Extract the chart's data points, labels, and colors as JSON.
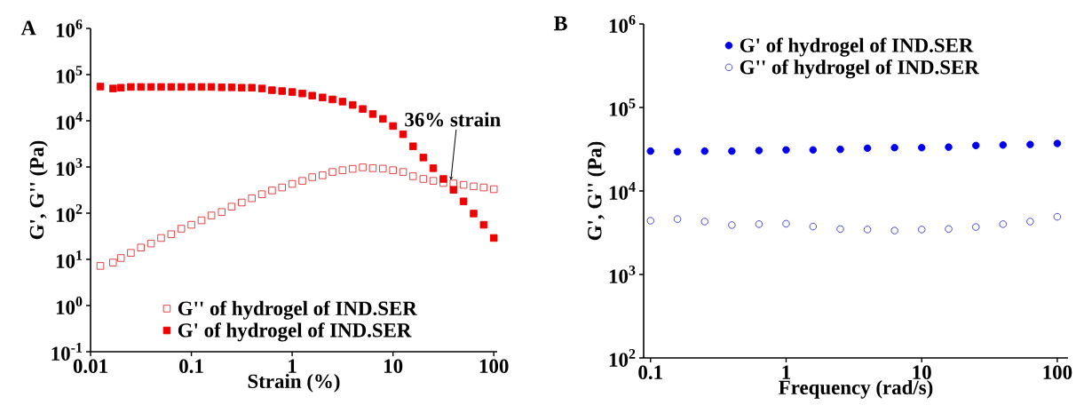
{
  "chart_data": [
    {
      "type": "scatter",
      "title": "A",
      "xlabel": "Strain (%)",
      "ylabel": "G', G'' (Pa)",
      "log": "xy",
      "legend": "bottom",
      "grid": false,
      "xlim": [
        0.01,
        108
      ],
      "ylim": [
        0.1,
        1000000
      ],
      "xticks": [
        0.01,
        0.1,
        1,
        10,
        100
      ],
      "yticks": [
        {
          "value": 0.1,
          "label": "10$^{-1}$"
        },
        {
          "value": 1,
          "label": "10$^{0}$"
        },
        {
          "value": 10,
          "label": "10$^{1}$"
        },
        {
          "value": 100,
          "label": "10$^{2}$"
        },
        {
          "value": 1000,
          "label": "10$^{3}$"
        },
        {
          "value": 10000,
          "label": "10$^{4}$"
        },
        {
          "value": 100000,
          "label": "10$^{5}$"
        },
        {
          "value": 1000000,
          "label": "10$^{6}$"
        }
      ],
      "x": [
        0.0125,
        0.0167,
        0.02,
        0.0251,
        0.0316,
        0.0398,
        0.0501,
        0.0631,
        0.0794,
        0.1,
        0.126,
        0.158,
        0.2,
        0.251,
        0.316,
        0.398,
        0.501,
        0.631,
        0.794,
        1,
        1.26,
        1.58,
        2,
        2.51,
        3.16,
        3.98,
        5.01,
        6.31,
        7.94,
        10,
        12.6,
        15.8,
        20,
        25.1,
        31.6,
        39.8,
        50.1,
        63.1,
        79.4,
        100
      ],
      "series": [
        {
          "name": "G'' of hydrogel of IND.SER",
          "color": "#e03030",
          "marker": "square",
          "values": [
            7.2,
            8.5,
            10.7,
            13.8,
            18,
            22,
            29,
            35,
            46,
            56,
            70,
            89,
            106,
            138,
            170,
            210,
            257,
            310,
            360,
            430,
            500,
            600,
            660,
            780,
            850,
            910,
            980,
            940,
            920,
            850,
            780,
            630,
            550,
            500,
            450,
            440,
            410,
            380,
            360,
            330
          ]
        },
        {
          "name": "G' of hydrogel of IND.SER",
          "color": "#ee0000",
          "marker": "square",
          "values": [
            55000,
            50000,
            52000,
            54000,
            54000,
            54000,
            54000,
            54000,
            54000,
            54000,
            54000,
            54000,
            53000,
            53000,
            52000,
            52000,
            50000,
            46000,
            44000,
            42000,
            39000,
            35000,
            32000,
            29000,
            26000,
            22000,
            18000,
            14000,
            11000,
            7700,
            5100,
            2800,
            1600,
            940,
            550,
            320,
            180,
            98,
            56,
            29
          ]
        }
      ],
      "annotations": [
        {
          "text": "36% strain",
          "x": 36,
          "y": 450
        }
      ]
    },
    {
      "type": "scatter",
      "title": "B",
      "xlabel": "Frequency (rad/s)",
      "ylabel": "G', G'' (Pa)",
      "log": "xy",
      "legend": "top",
      "grid": false,
      "xlim": [
        0.089,
        120
      ],
      "ylim": [
        100,
        1000000
      ],
      "xticks": [
        0.1,
        1,
        10,
        100
      ],
      "yticks": [
        {
          "value": 100,
          "label": "10$^{2}$"
        },
        {
          "value": 1000,
          "label": "10$^{3}$"
        },
        {
          "value": 10000,
          "label": "10$^{4}$"
        },
        {
          "value": 100000,
          "label": "10$^{5}$"
        },
        {
          "value": 1000000,
          "label": "10$^{6}$"
        }
      ],
      "x": [
        0.1,
        0.158,
        0.251,
        0.398,
        0.631,
        1,
        1.58,
        2.51,
        3.98,
        6.31,
        10,
        15.8,
        25.1,
        39.8,
        63.1,
        100
      ],
      "series": [
        {
          "name": "G' of hydrogel of IND.SER",
          "color": "#0000ee",
          "marker": "circle",
          "values": [
            30000,
            29500,
            30000,
            30000,
            30500,
            31000,
            31000,
            31500,
            32500,
            33000,
            33000,
            33500,
            35000,
            35500,
            36000,
            37000
          ]
        },
        {
          "name": "G'' of hydrogel of IND.SER",
          "color": "#3333cc",
          "marker": "circle",
          "values": [
            4400,
            4600,
            4300,
            3900,
            4000,
            4050,
            3750,
            3500,
            3450,
            3350,
            3450,
            3500,
            3700,
            4000,
            4300,
            4900
          ]
        }
      ]
    }
  ]
}
